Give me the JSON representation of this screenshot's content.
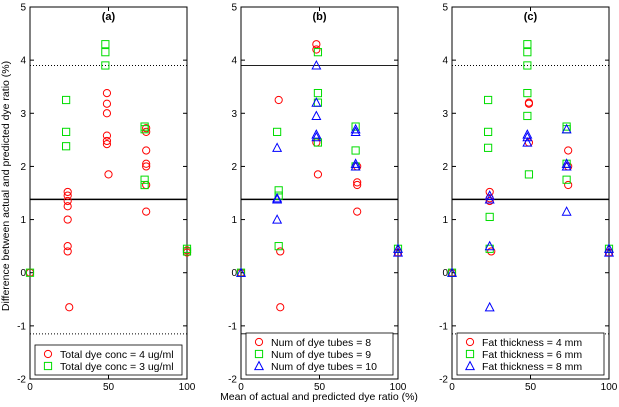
{
  "chart_data": {
    "type": "scatter",
    "xlabel": "Mean of actual and predicted dye ratio (%)",
    "ylabel": "Difference between actual and predicted dye ratio (%)",
    "xlim": [
      0,
      100
    ],
    "ylim": [
      -2,
      5
    ],
    "xticks": [
      "0",
      "50",
      "100"
    ],
    "yticks": [
      "-2",
      "-1",
      "0",
      "1",
      "2",
      "3",
      "4",
      "5"
    ],
    "grid": false,
    "panels": [
      {
        "title": "(a)",
        "legend_position": "bottom",
        "ref_lines": [
          {
            "y": 3.9,
            "style": "dotted"
          },
          {
            "y": 1.38,
            "style": "solid"
          },
          {
            "y": -1.15,
            "style": "dotted"
          }
        ],
        "series": [
          {
            "name": "Total dye conc = 4 ug/ml",
            "marker": "circle",
            "color": "#ff0000",
            "points": [
              [
                0,
                0
              ],
              [
                24,
                1.52
              ],
              [
                24,
                1.45
              ],
              [
                24,
                1.35
              ],
              [
                24,
                1.25
              ],
              [
                24,
                1.0
              ],
              [
                24,
                0.5
              ],
              [
                24,
                0.4
              ],
              [
                25,
                -0.65
              ],
              [
                49,
                3.38
              ],
              [
                49,
                3.18
              ],
              [
                49,
                3.0
              ],
              [
                49,
                2.58
              ],
              [
                49,
                2.48
              ],
              [
                49,
                2.42
              ],
              [
                50,
                1.85
              ],
              [
                74,
                2.72
              ],
              [
                74,
                2.65
              ],
              [
                74,
                2.3
              ],
              [
                74,
                2.05
              ],
              [
                74,
                2.0
              ],
              [
                74,
                1.65
              ],
              [
                74,
                1.15
              ],
              [
                100,
                0.38
              ],
              [
                100,
                0.42
              ]
            ]
          },
          {
            "name": "Total dye conc = 3 ug/ml",
            "marker": "square",
            "color": "#00dd00",
            "points": [
              [
                0,
                0
              ],
              [
                23,
                3.25
              ],
              [
                23,
                2.65
              ],
              [
                23,
                2.38
              ],
              [
                48,
                4.3
              ],
              [
                48,
                4.15
              ],
              [
                48,
                3.9
              ],
              [
                73,
                2.75
              ],
              [
                73,
                2.7
              ],
              [
                73,
                1.75
              ],
              [
                73,
                1.65
              ],
              [
                100,
                0.45
              ],
              [
                100,
                0.4
              ]
            ]
          }
        ]
      },
      {
        "title": "(b)",
        "legend_position": "bottom",
        "ref_lines": [
          {
            "y": 3.9,
            "style": "solid"
          },
          {
            "y": 1.38,
            "style": "solid"
          },
          {
            "y": -1.15,
            "style": "solid"
          }
        ],
        "series": [
          {
            "name": "Num of dye tubes = 8",
            "marker": "circle",
            "color": "#ff0000",
            "points": [
              [
                0,
                0
              ],
              [
                24,
                3.25
              ],
              [
                25,
                0.4
              ],
              [
                25,
                -0.65
              ],
              [
                48,
                4.3
              ],
              [
                48,
                4.2
              ],
              [
                48,
                2.45
              ],
              [
                49,
                1.85
              ],
              [
                74,
                2.0
              ],
              [
                74,
                1.7
              ],
              [
                74,
                1.65
              ],
              [
                74,
                1.15
              ],
              [
                100,
                0.38
              ]
            ]
          },
          {
            "name": "Num of dye tubes = 9",
            "marker": "square",
            "color": "#00dd00",
            "points": [
              [
                0,
                0
              ],
              [
                23,
                2.65
              ],
              [
                24,
                1.55
              ],
              [
                24,
                1.45
              ],
              [
                24,
                0.5
              ],
              [
                49,
                4.15
              ],
              [
                49,
                3.38
              ],
              [
                49,
                3.2
              ],
              [
                49,
                2.45
              ],
              [
                73,
                2.75
              ],
              [
                73,
                2.3
              ],
              [
                73,
                2.0
              ],
              [
                100,
                0.45
              ]
            ]
          },
          {
            "name": "Num of dye tubes = 10",
            "marker": "triangle",
            "color": "#0000ff",
            "points": [
              [
                0,
                0
              ],
              [
                23,
                2.35
              ],
              [
                23,
                1.4
              ],
              [
                23,
                1.38
              ],
              [
                23,
                1.0
              ],
              [
                48,
                3.9
              ],
              [
                48,
                3.2
              ],
              [
                48,
                2.95
              ],
              [
                48,
                2.6
              ],
              [
                48,
                2.55
              ],
              [
                73,
                2.7
              ],
              [
                73,
                2.65
              ],
              [
                73,
                2.05
              ],
              [
                73,
                2.0
              ],
              [
                100,
                0.45
              ],
              [
                100,
                0.38
              ]
            ]
          }
        ]
      },
      {
        "title": "(c)",
        "legend_position": "bottom",
        "ref_lines": [
          {
            "y": 3.9,
            "style": "dotted"
          },
          {
            "y": 1.38,
            "style": "solid"
          },
          {
            "y": -1.15,
            "style": "dotted"
          }
        ],
        "series": [
          {
            "name": "Fat thickness = 4 mm",
            "marker": "circle",
            "color": "#ff0000",
            "points": [
              [
                0,
                0
              ],
              [
                24,
                1.52
              ],
              [
                24,
                1.4
              ],
              [
                24,
                1.35
              ],
              [
                25,
                0.4
              ],
              [
                49,
                3.2
              ],
              [
                49,
                3.18
              ],
              [
                49,
                2.45
              ],
              [
                74,
                2.3
              ],
              [
                74,
                2.0
              ],
              [
                74,
                1.65
              ],
              [
                100,
                0.38
              ]
            ]
          },
          {
            "name": "Fat thickness = 6 mm",
            "marker": "square",
            "color": "#00dd00",
            "points": [
              [
                0,
                0
              ],
              [
                23,
                3.25
              ],
              [
                23,
                2.65
              ],
              [
                23,
                2.35
              ],
              [
                24,
                1.05
              ],
              [
                24,
                0.45
              ],
              [
                48,
                4.3
              ],
              [
                48,
                4.15
              ],
              [
                48,
                3.9
              ],
              [
                48,
                3.38
              ],
              [
                48,
                2.95
              ],
              [
                49,
                1.85
              ],
              [
                73,
                2.75
              ],
              [
                73,
                2.7
              ],
              [
                73,
                2.05
              ],
              [
                73,
                1.75
              ],
              [
                100,
                0.45
              ]
            ]
          },
          {
            "name": "Fat thickness = 8 mm",
            "marker": "triangle",
            "color": "#0000ff",
            "points": [
              [
                0,
                0
              ],
              [
                24,
                1.45
              ],
              [
                24,
                1.38
              ],
              [
                24,
                0.5
              ],
              [
                24,
                -0.65
              ],
              [
                48,
                2.6
              ],
              [
                48,
                2.55
              ],
              [
                48,
                2.45
              ],
              [
                73,
                2.7
              ],
              [
                73,
                2.05
              ],
              [
                73,
                2.0
              ],
              [
                73,
                1.15
              ],
              [
                100,
                0.45
              ],
              [
                100,
                0.38
              ]
            ]
          }
        ]
      }
    ]
  }
}
